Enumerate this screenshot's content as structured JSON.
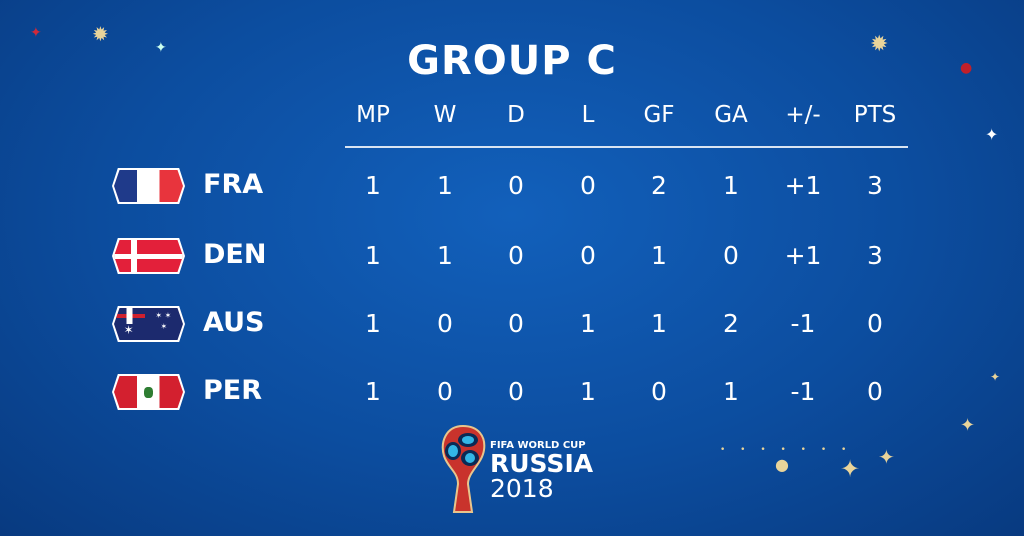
{
  "title": "GROUP C",
  "columns": [
    "MP",
    "W",
    "D",
    "L",
    "GF",
    "GA",
    "+/-",
    "PTS"
  ],
  "teams": [
    {
      "code": "FRA",
      "flag": "france-flag",
      "stats": [
        "1",
        "1",
        "0",
        "0",
        "2",
        "1",
        "+1",
        "3"
      ]
    },
    {
      "code": "DEN",
      "flag": "denmark-flag",
      "stats": [
        "1",
        "1",
        "0",
        "0",
        "1",
        "0",
        "+1",
        "3"
      ]
    },
    {
      "code": "AUS",
      "flag": "australia-flag",
      "stats": [
        "1",
        "0",
        "0",
        "1",
        "1",
        "2",
        "-1",
        "0"
      ]
    },
    {
      "code": "PER",
      "flag": "peru-flag",
      "stats": [
        "1",
        "0",
        "0",
        "1",
        "0",
        "1",
        "-1",
        "0"
      ]
    }
  ],
  "logo": {
    "line1": "FIFA WORLD CUP",
    "line2": "RUSSIA",
    "line3": "2018"
  },
  "colors": {
    "background": "#0c4d9f",
    "text": "#ffffff",
    "accent_gold": "#e9d49a"
  }
}
